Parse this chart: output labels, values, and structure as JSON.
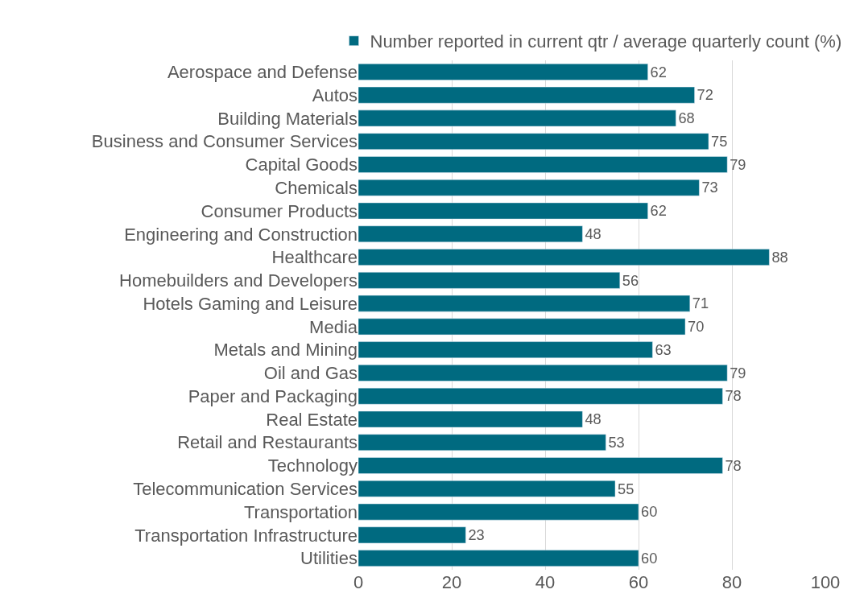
{
  "chart_data": {
    "type": "bar",
    "orientation": "horizontal",
    "categories": [
      "Aerospace and Defense",
      "Autos",
      "Building Materials",
      "Business and Consumer Services",
      "Capital Goods",
      "Chemicals",
      "Consumer Products",
      "Engineering and Construction",
      "Healthcare",
      "Homebuilders and Developers",
      "Hotels Gaming and Leisure",
      "Media",
      "Metals and Mining",
      "Oil and Gas",
      "Paper and Packaging",
      "Real Estate",
      "Retail and Restaurants",
      "Technology",
      "Telecommunication Services",
      "Transportation",
      "Transportation Infrastructure",
      "Utilities"
    ],
    "series": [
      {
        "name": "Number reported in current qtr / average quarterly count (%)",
        "color": "#006a80",
        "values": [
          62,
          72,
          68,
          75,
          79,
          73,
          62,
          48,
          88,
          56,
          71,
          70,
          63,
          79,
          78,
          48,
          53,
          78,
          55,
          60,
          23,
          60
        ]
      }
    ],
    "xlim": [
      0,
      100
    ],
    "xticks": [
      0,
      20,
      40,
      60,
      80,
      100
    ],
    "grid": "x",
    "legend": "top",
    "data_labels": true
  }
}
